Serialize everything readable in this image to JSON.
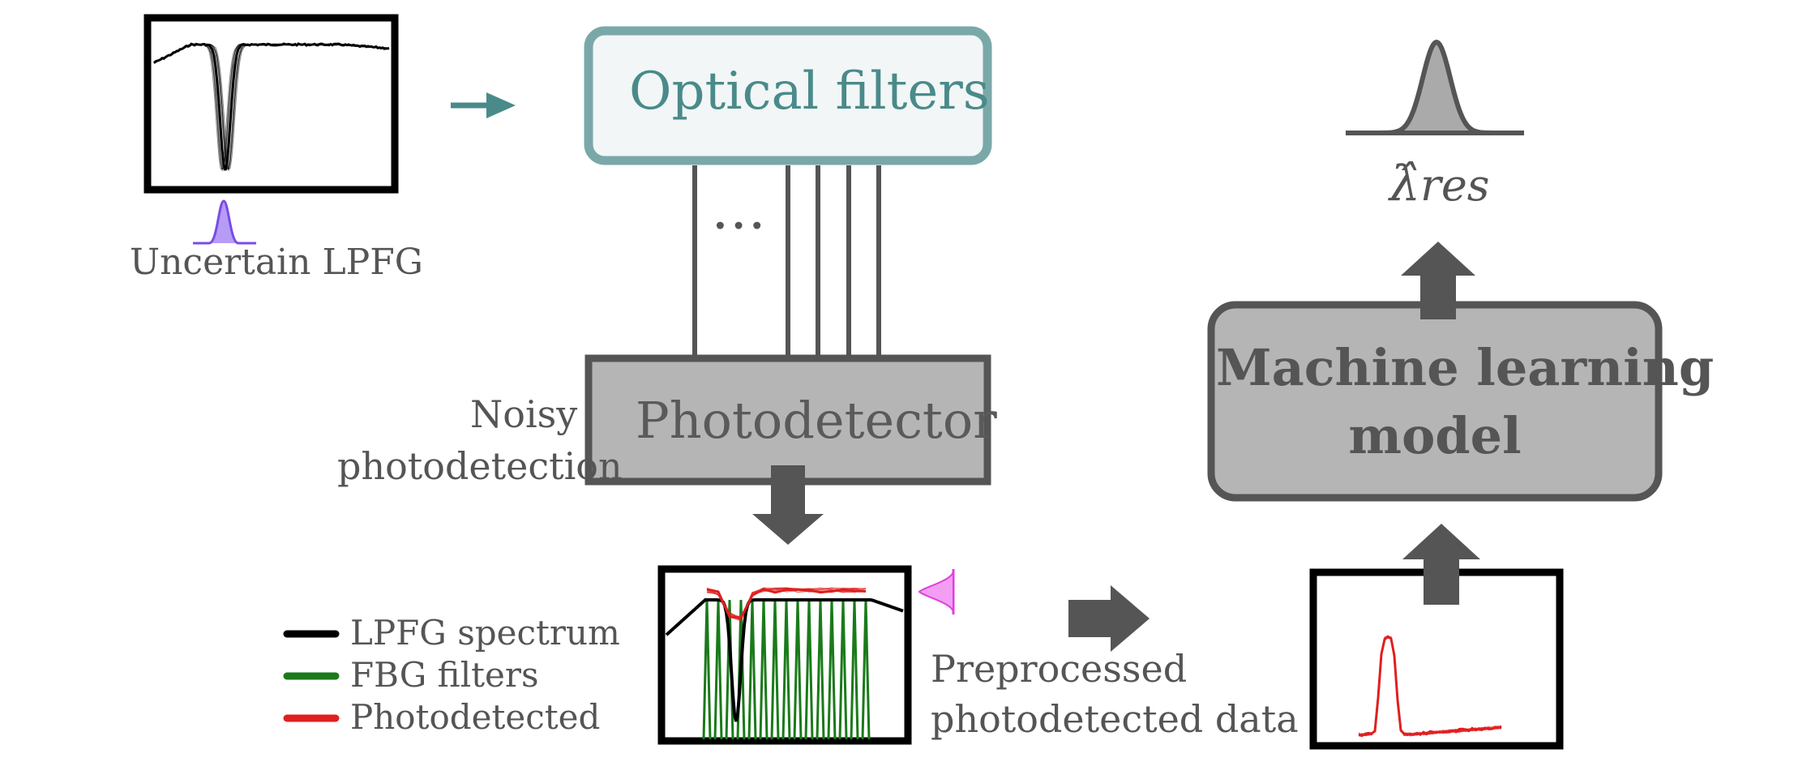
{
  "labels": {
    "uncertain_lpfg": "Uncertain LPFG",
    "optical_filters": "Optical filters",
    "ellipsis": "...",
    "photodetector": "Photodetector",
    "noisy_line1": "Noisy",
    "noisy_line2": "photodetection",
    "ml_line1": "Machine learning",
    "ml_line2": "model",
    "lambda_hat": "λ̂",
    "lambda_sub": "res",
    "preprocessed_line1": "Preprocessed",
    "preprocessed_line2": "photodetected data"
  },
  "legend": [
    {
      "label": "LPFG spectrum",
      "color": "#000000"
    },
    {
      "label": "FBG filters",
      "color": "#1a7a1a"
    },
    {
      "label": "Photodetected",
      "color": "#e02020"
    }
  ],
  "colors": {
    "optical_box_border": "#7aa8a8",
    "optical_box_fill": "#f2f6f6",
    "box_gray_fill": "#b5b5b5",
    "box_border": "#555555",
    "arrow_teal": "#4a8a8a",
    "arrow_gray": "#555555",
    "purple_dist": "#8a5cf0",
    "magenta_dist": "#e040e0",
    "output_dist_fill": "#aaaaaa"
  }
}
